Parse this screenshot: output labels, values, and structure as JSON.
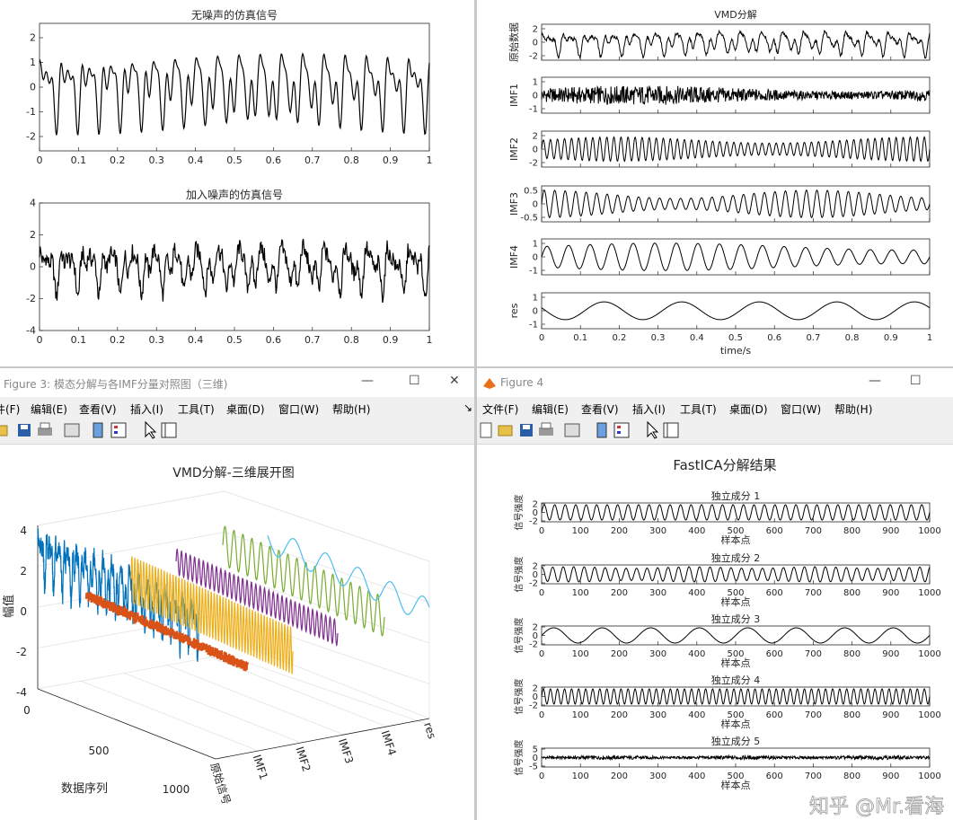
{
  "fig1": {
    "panel1": {
      "title": "无噪声的仿真信号",
      "yticks": [
        "2",
        "1",
        "0",
        "-1",
        "-2"
      ],
      "xticks": [
        "0",
        "0.1",
        "0.2",
        "0.3",
        "0.4",
        "0.5",
        "0.6",
        "0.7",
        "0.8",
        "0.9",
        "1"
      ]
    },
    "panel2": {
      "title": "加入噪声的仿真信号",
      "yticks": [
        "4",
        "2",
        "0",
        "-2",
        "-4"
      ],
      "xticks": [
        "0",
        "0.1",
        "0.2",
        "0.3",
        "0.4",
        "0.5",
        "0.6",
        "0.7",
        "0.8",
        "0.9",
        "1"
      ]
    }
  },
  "fig2": {
    "title": "VMD分解",
    "xlabel": "time/s",
    "xticks": [
      "0",
      "0.1",
      "0.2",
      "0.3",
      "0.4",
      "0.5",
      "0.6",
      "0.7",
      "0.8",
      "0.9",
      "1"
    ],
    "rows": [
      {
        "label": "原始数据",
        "yticks": [
          "2",
          "0",
          "-2"
        ]
      },
      {
        "label": "IMF1",
        "yticks": [
          "1",
          "0",
          "-1"
        ]
      },
      {
        "label": "IMF2",
        "yticks": [
          "2",
          "0",
          "-2"
        ]
      },
      {
        "label": "IMF3",
        "yticks": [
          "0.5",
          "0",
          "-0.5"
        ]
      },
      {
        "label": "IMF4",
        "yticks": [
          "1",
          "0",
          "-1"
        ]
      },
      {
        "label": "res",
        "yticks": [
          "1",
          "0",
          "-1"
        ]
      }
    ]
  },
  "fig3": {
    "window_title": "Figure 3: 模态分解与各IMF分量对照图（三维)",
    "menu": [
      "件(F)",
      "编辑(E)",
      "查看(V)",
      "插入(I)",
      "工具(T)",
      "桌面(D)",
      "窗口(W)",
      "帮助(H)"
    ],
    "plot_title": "VMD分解-三维展开图",
    "zticks": [
      "4",
      "2",
      "0",
      "-2",
      "-4"
    ],
    "zlabel": "幅值",
    "yticks": [
      "0",
      "500",
      "1000"
    ],
    "ylabel": "数据序列",
    "xticks": [
      "原始信号",
      "IMF1",
      "IMF2",
      "IMF3",
      "IMF4",
      "res"
    ]
  },
  "fig4": {
    "window_title": "Figure 4",
    "menu": [
      "文件(F)",
      "编辑(E)",
      "查看(V)",
      "插入(I)",
      "工具(T)",
      "桌面(D)",
      "窗口(W)",
      "帮助(H)"
    ],
    "plot_title": "FastICA分解结果",
    "xlabel": "样本点",
    "ylabel": "信号强度",
    "xticks": [
      "0",
      "100",
      "200",
      "300",
      "400",
      "500",
      "600",
      "700",
      "800",
      "900",
      "1000"
    ],
    "rows": [
      {
        "title": "独立成分 1",
        "yticks": [
          "2",
          "0",
          "-2"
        ]
      },
      {
        "title": "独立成分 2",
        "yticks": [
          "2",
          "0",
          "-2"
        ]
      },
      {
        "title": "独立成分 3",
        "yticks": [
          "2",
          "0",
          "-2"
        ]
      },
      {
        "title": "独立成分 4",
        "yticks": [
          "2",
          "0",
          "-2"
        ]
      },
      {
        "title": "独立成分 5",
        "yticks": [
          "5",
          "0",
          "-5"
        ]
      }
    ],
    "watermark": "知乎 @Mr.看海"
  },
  "colors": {
    "line": "#000000",
    "s1": "#0072bd",
    "s2": "#d95319",
    "s3": "#edb120",
    "s4": "#7e2f8e",
    "s5": "#77ac30",
    "s6": "#4dbeee"
  },
  "chart_data": [
    {
      "type": "line",
      "title": "无噪声的仿真信号",
      "x_range": [
        0,
        1
      ],
      "ylim": [
        -2.5,
        2.5
      ]
    },
    {
      "type": "line",
      "title": "加入噪声的仿真信号",
      "x_range": [
        0,
        1
      ],
      "ylim": [
        -4,
        4
      ]
    },
    {
      "type": "line",
      "title": "VMD分解",
      "xlabel": "time/s",
      "x_range": [
        0,
        1
      ],
      "series": [
        {
          "name": "原始数据",
          "ylim": [
            -3,
            3
          ]
        },
        {
          "name": "IMF1",
          "ylim": [
            -1,
            1
          ]
        },
        {
          "name": "IMF2",
          "ylim": [
            -2,
            2
          ]
        },
        {
          "name": "IMF3",
          "ylim": [
            -0.7,
            0.7
          ]
        },
        {
          "name": "IMF4",
          "ylim": [
            -1.2,
            1.2
          ]
        },
        {
          "name": "res",
          "ylim": [
            -1,
            1
          ]
        }
      ]
    },
    {
      "type": "line",
      "title": "VMD分解-三维展开图",
      "zlabel": "幅值",
      "ylabel": "数据序列",
      "categories": [
        "原始信号",
        "IMF1",
        "IMF2",
        "IMF3",
        "IMF4",
        "res"
      ],
      "zlim": [
        -4,
        4
      ],
      "ylim": [
        0,
        1000
      ]
    },
    {
      "type": "line",
      "title": "FastICA分解结果",
      "xlabel": "样本点",
      "ylabel": "信号强度",
      "x_range": [
        0,
        1000
      ],
      "series": [
        {
          "name": "独立成分 1",
          "ylim": [
            -2,
            2
          ]
        },
        {
          "name": "独立成分 2",
          "ylim": [
            -2,
            2
          ]
        },
        {
          "name": "独立成分 3",
          "ylim": [
            -2,
            2
          ]
        },
        {
          "name": "独立成分 4",
          "ylim": [
            -2,
            2
          ]
        },
        {
          "name": "独立成分 5",
          "ylim": [
            -5,
            5
          ]
        }
      ]
    }
  ]
}
